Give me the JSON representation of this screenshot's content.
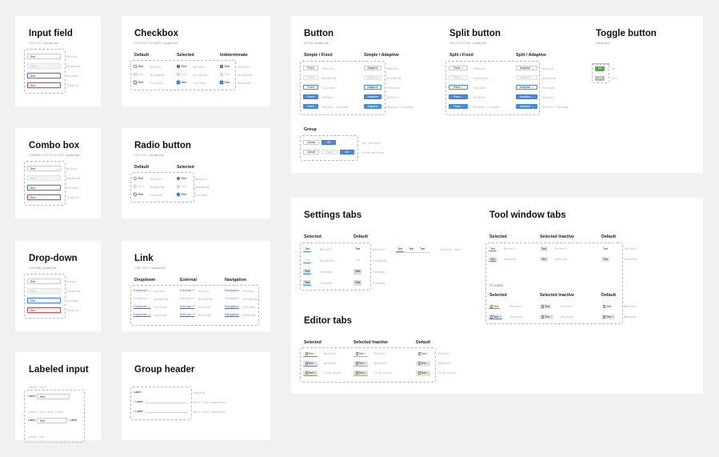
{
  "input_field": {
    "title": "Input field",
    "sub": "SPECIFICS",
    "sub_link": "Guideline",
    "values": [
      "Text",
      "Text",
      "Text",
      "Text"
    ],
    "states": [
      "Active",
      "Disabled",
      "Focused",
      "Invalid"
    ]
  },
  "checkbox": {
    "title": "Checkbox",
    "sub": "SPECIFICS ELEMENTS",
    "sub_link": "Guideline",
    "cols": [
      "Default",
      "Selected",
      "Indeterminate"
    ],
    "text": "Text",
    "states": [
      "Default",
      "Disabled",
      "Focused"
    ]
  },
  "combo_box": {
    "title": "Combo box",
    "sub": "COMBOBOX SPECIFICATIONS",
    "sub_link": "Guideline",
    "values": [
      "Text",
      "Text",
      "Text",
      "Text"
    ],
    "states": [
      "Active",
      "Disabled",
      "Focused",
      "Invalid"
    ]
  },
  "radio_button": {
    "title": "Radio button",
    "sub": "SPECIFICS",
    "sub_link": "Guideline",
    "cols": [
      "Default",
      "Selected"
    ],
    "text": "Text",
    "states": [
      "Default",
      "Disabled",
      "Focused"
    ]
  },
  "dropdown": {
    "title": "Drop-down",
    "sub": "DROPDOWN",
    "sub_link": "Guideline",
    "values": [
      "Text",
      "Text",
      "Text",
      "Text"
    ],
    "states": [
      "Active",
      "Disabled",
      "Focused",
      "Invalid"
    ]
  },
  "link": {
    "title": "Link",
    "sub": "LINK SPECS",
    "sub_link": "Guideline",
    "cols": [
      "Dropdown",
      "External",
      "Navigation"
    ],
    "col_texts": [
      "Dropdown",
      "External",
      "Navigation"
    ],
    "states": [
      "Active",
      "Disabled",
      "Focused",
      "Hovered"
    ]
  },
  "labeled_input": {
    "title": "Labeled input",
    "top_note": "Label left",
    "label": "Label",
    "value": "Text",
    "mid_note": "Label left and right",
    "right_label": "Label",
    "bottom_note": "Label top"
  },
  "group_header": {
    "title": "Group header",
    "rows": [
      "Label",
      "Label",
      "Label"
    ],
    "notes": [
      "Regular",
      "With line separator",
      "With text separator"
    ]
  },
  "button": {
    "title": "Button",
    "sub": "BUTTON",
    "sub_link": "Guideline",
    "col1": "Simple / Fixed",
    "col2": "Simple / Adaptive",
    "fixed_label": "Fixed",
    "adaptive_label": "Adaptive",
    "states": [
      "Regular",
      "Disabled",
      "Focused",
      "Default",
      "Default Focused"
    ],
    "group_title": "Group",
    "cancel": "Cancel",
    "ok": "OK",
    "apply": "Apply",
    "group_notes": [
      "Two buttons",
      "Three buttons"
    ]
  },
  "split_button": {
    "title": "Split button",
    "sub": "SPECIFICATIONS",
    "sub_link": "Guideline",
    "col1": "Split / Fixed",
    "col2": "Split / Adaptive",
    "fixed_label": "Fixed",
    "adaptive_label": "Adaptive",
    "states": [
      "Regular",
      "Disabled",
      "Focused",
      "Default",
      "Default Focused"
    ]
  },
  "toggle_button": {
    "title": "Toggle button",
    "sub_link": "Guideline",
    "on": "ON",
    "off": "OFF",
    "notes": [
      "On",
      "Off"
    ]
  },
  "settings_tabs": {
    "title": "Settings tabs",
    "col1": "Selected",
    "col2": "Default",
    "tab": "Text",
    "states": [
      "Default",
      "Disabled",
      "Focused",
      "Pressed"
    ],
    "inline_tabs": [
      "Text",
      "Text",
      "Text"
    ],
    "inline_note": "Several tabs"
  },
  "tool_window_tabs": {
    "title": "Tool window tabs",
    "cols": [
      "Selected",
      "Selected Inactive",
      "Default"
    ],
    "tab": "Text",
    "states": [
      "Default",
      "Hovered"
    ],
    "closable": "Closable"
  },
  "editor_tabs": {
    "title": "Editor tabs",
    "cols": [
      "Selected",
      "Selected Inactive",
      "Default"
    ],
    "tab": "Text",
    "states": [
      "Default",
      "Hovered",
      "File color"
    ]
  }
}
